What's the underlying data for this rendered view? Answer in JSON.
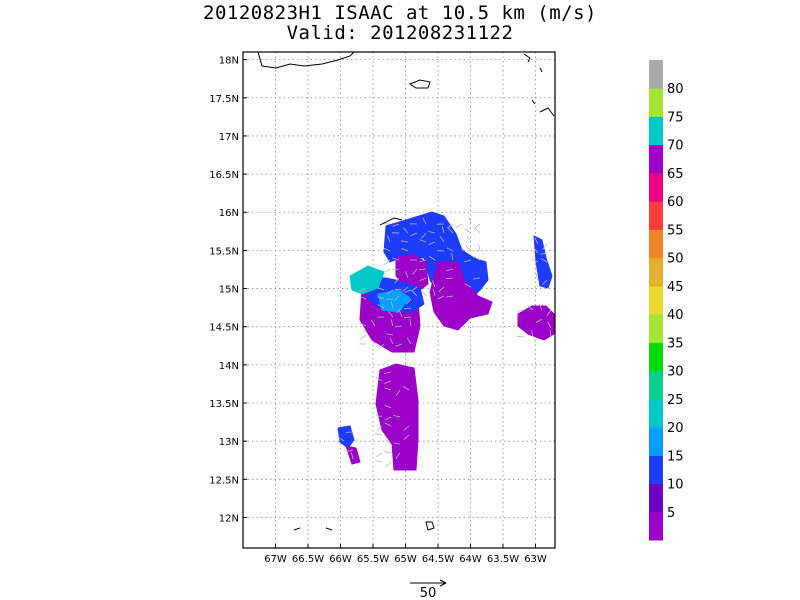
{
  "title": {
    "line1": "20120823H1 ISAAC at 10.5 km (m/s)",
    "line2": "Valid: 201208231122"
  },
  "map": {
    "lon_range": [
      -67.5,
      -62.7
    ],
    "lat_range": [
      11.6,
      18.1
    ],
    "lon_ticks": [
      {
        "value": -67.0,
        "label": "67W"
      },
      {
        "value": -66.5,
        "label": "66.5W"
      },
      {
        "value": -66.0,
        "label": "66W"
      },
      {
        "value": -65.5,
        "label": "65.5W"
      },
      {
        "value": -65.0,
        "label": "65W"
      },
      {
        "value": -64.5,
        "label": "64.5W"
      },
      {
        "value": -64.0,
        "label": "64W"
      },
      {
        "value": -63.5,
        "label": "63.5W"
      },
      {
        "value": -63.0,
        "label": "63W"
      }
    ],
    "lat_ticks": [
      {
        "value": 18.0,
        "label": "18N"
      },
      {
        "value": 17.5,
        "label": "17.5N"
      },
      {
        "value": 17.0,
        "label": "17N"
      },
      {
        "value": 16.5,
        "label": "16.5N"
      },
      {
        "value": 16.0,
        "label": "16N"
      },
      {
        "value": 15.5,
        "label": "15.5N"
      },
      {
        "value": 15.0,
        "label": "15N"
      },
      {
        "value": 14.5,
        "label": "14.5N"
      },
      {
        "value": 14.0,
        "label": "14N"
      },
      {
        "value": 13.5,
        "label": "13.5N"
      },
      {
        "value": 13.0,
        "label": "13N"
      },
      {
        "value": 12.5,
        "label": "12.5N"
      },
      {
        "value": 12.0,
        "label": "12N"
      }
    ],
    "grid": true
  },
  "colorbar": {
    "labels": [
      "5",
      "10",
      "15",
      "20",
      "25",
      "30",
      "35",
      "40",
      "45",
      "50",
      "55",
      "60",
      "65",
      "70",
      "75",
      "80"
    ],
    "colors": [
      "#9a00c8",
      "#6a00c0",
      "#1e3cff",
      "#00a0ff",
      "#00c8c8",
      "#00d28c",
      "#00dc00",
      "#a0e632",
      "#e6dc32",
      "#e6af2d",
      "#f08228",
      "#fa3c3c",
      "#f00082",
      "#a000c8",
      "#00c8c8",
      "#a0e632",
      "#aaaaaa"
    ]
  },
  "reference_vector": {
    "label": "50"
  },
  "colors": {
    "purple": "#9a00c8",
    "blue": "#1e3cff",
    "lightblue": "#00a0ff",
    "cyan": "#00c8c8"
  },
  "icons": {
    "wind_barb": "wind-vector-arrow-icon",
    "coastline": "coastline-outline"
  }
}
